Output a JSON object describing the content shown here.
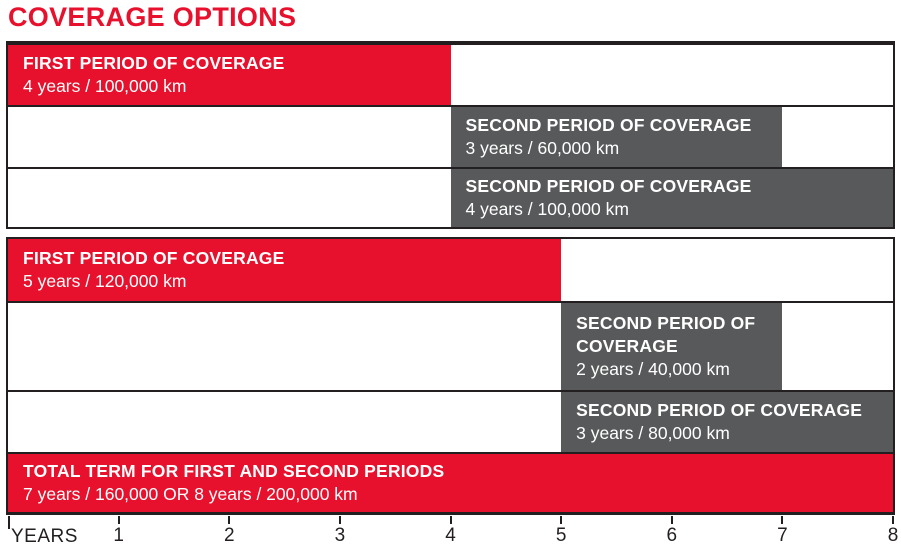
{
  "title": "COVERAGE OPTIONS",
  "colors": {
    "red": "#E8112D",
    "gray": "#58595B",
    "border": "#231F20",
    "axis_text": "#231F20",
    "bar_text": "#FFFFFF"
  },
  "axis": {
    "label": "YEARS"
  },
  "chart_data": {
    "type": "bar",
    "title": "COVERAGE OPTIONS",
    "xlabel": "YEARS",
    "xlim": [
      0,
      8
    ],
    "x_ticks": [
      1,
      2,
      3,
      4,
      5,
      6,
      7,
      8
    ],
    "grid": false,
    "orientation": "horizontal-span",
    "groups": [
      {
        "rows": [
          {
            "label": "FIRST PERIOD OF COVERAGE",
            "detail": "4 years / 100,000 km",
            "start": 0,
            "end": 4,
            "color": "red"
          },
          {
            "label": "SECOND PERIOD OF COVERAGE",
            "detail": "3 years / 60,000 km",
            "start": 4,
            "end": 7,
            "color": "gray"
          },
          {
            "label": "SECOND PERIOD OF COVERAGE",
            "detail": "4 years / 100,000 km",
            "start": 4,
            "end": 8,
            "color": "gray"
          }
        ]
      },
      {
        "rows": [
          {
            "label": "FIRST PERIOD OF COVERAGE",
            "detail": "5 years / 120,000 km",
            "start": 0,
            "end": 5,
            "color": "red"
          },
          {
            "label": "SECOND PERIOD OF COVERAGE",
            "detail": "2 years / 40,000 km",
            "start": 5,
            "end": 7,
            "color": "gray"
          },
          {
            "label": "SECOND PERIOD OF COVERAGE",
            "detail": "3 years / 80,000 km",
            "start": 5,
            "end": 8,
            "color": "gray"
          },
          {
            "label": "TOTAL TERM FOR FIRST AND SECOND PERIODS",
            "detail": "7 years / 160,000 OR 8 years / 200,000 km",
            "start": 0,
            "end": 8,
            "color": "red"
          }
        ]
      }
    ]
  }
}
